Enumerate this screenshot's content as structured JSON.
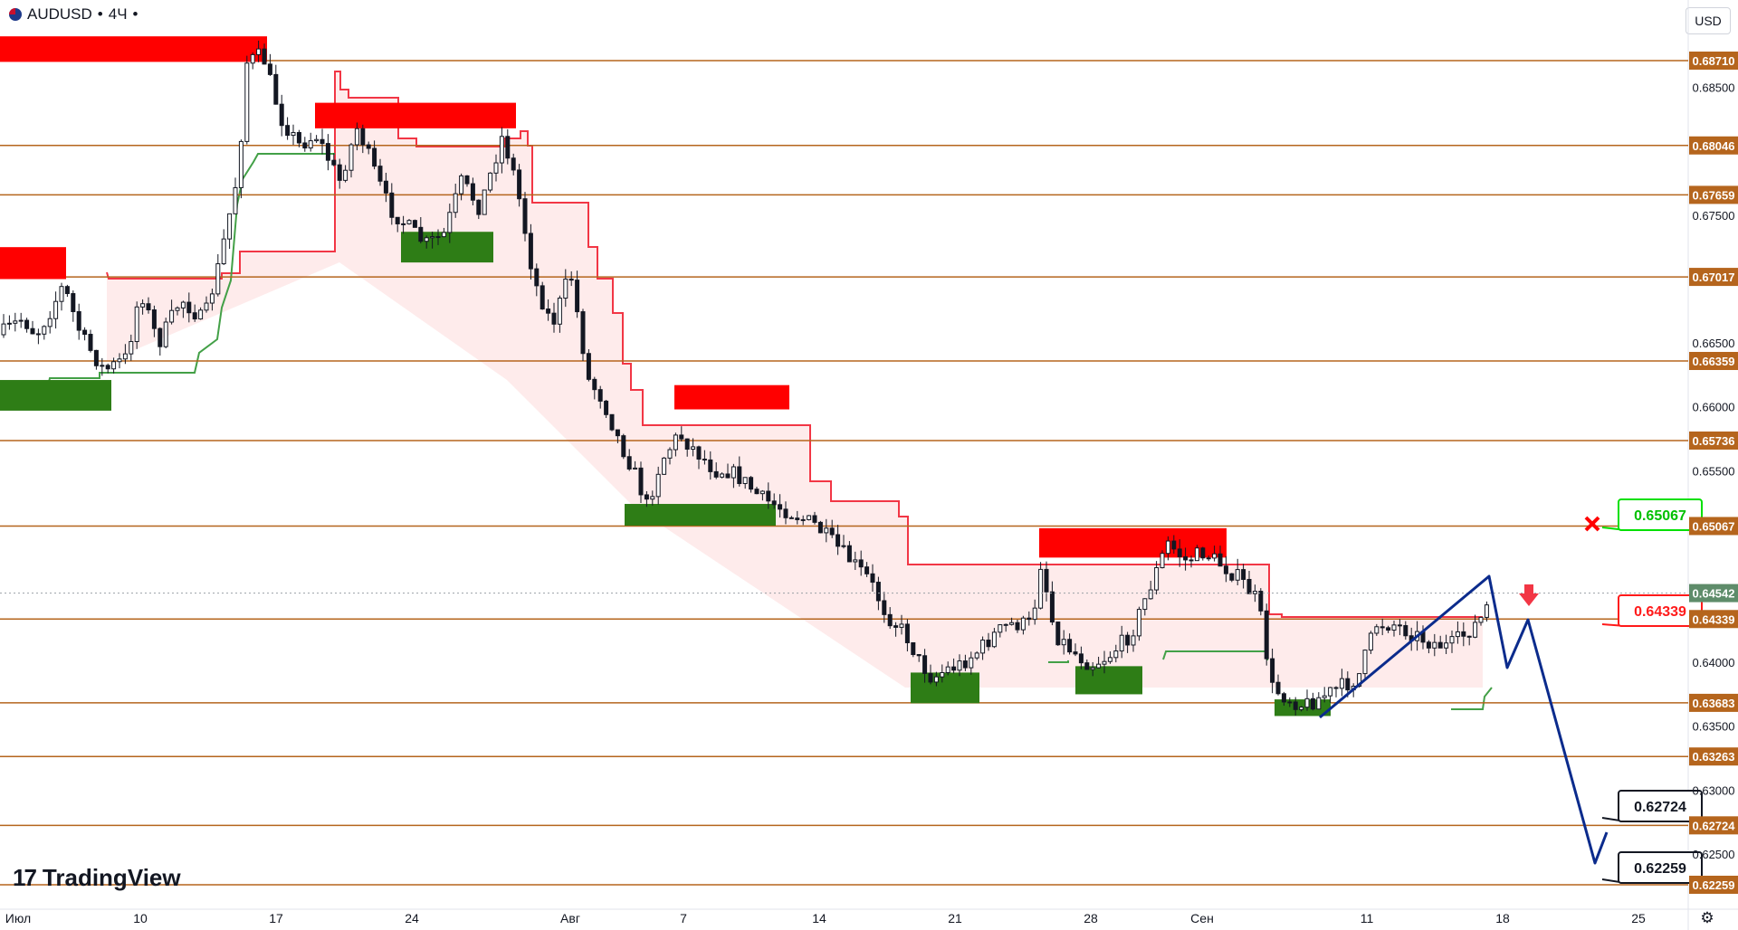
{
  "header": {
    "symbol": "AUDUSD",
    "interval": "4Ч",
    "currency": "USD"
  },
  "logo_text": "TradingView",
  "colors": {
    "level_line": "#b5651d",
    "level_label_bg": "#b5651d",
    "supply_zone": "#ff0000",
    "demand_zone": "#2e7d16",
    "trail_red": "#f23645",
    "trail_green": "#43a047",
    "fill_red": "#fde4e4",
    "fill_green": "#e6f4e3",
    "candle": "#131722",
    "projection": "#0b2b8c",
    "callout_green": "#00e000",
    "callout_red": "#ff1a1a",
    "price_bg": "#5e8c6a"
  },
  "chart_data": {
    "type": "candlestick",
    "y_axis": {
      "ticks": [
        "0.68500",
        "0.67500",
        "0.66500",
        "0.66000",
        "0.65500",
        "0.64000",
        "0.63500",
        "0.63000",
        "0.62500"
      ],
      "range": [
        0.6205,
        0.6895
      ]
    },
    "x_axis": {
      "labels": [
        "Июл",
        "10",
        "17",
        "24",
        "Авг",
        "7",
        "14",
        "21",
        "28",
        "Сен",
        "11",
        "18",
        "25"
      ]
    },
    "levels": [
      "0.68710",
      "0.68046",
      "0.67659",
      "0.67017",
      "0.66359",
      "0.65736",
      "0.65067",
      "0.64339",
      "0.63683",
      "0.63263",
      "0.62724",
      "0.62259"
    ],
    "current_price": "0.64542",
    "callouts": [
      {
        "label": "0.65067",
        "color": "green",
        "marker": "x"
      },
      {
        "label": "0.64339",
        "color": "red",
        "marker": "down-arrow"
      },
      {
        "label": "0.62724",
        "color": "black"
      },
      {
        "label": "0.62259",
        "color": "black"
      }
    ],
    "supply_zones": [
      {
        "from": "Июл",
        "to": "17",
        "low": 0.687,
        "high": 0.689
      },
      {
        "from": "Июл",
        "to": "10",
        "low": 0.67,
        "high": 0.6725
      },
      {
        "from": "24",
        "to": "Авг",
        "low": 0.6818,
        "high": 0.6838
      },
      {
        "from": "7",
        "to": "14",
        "low": 0.6598,
        "high": 0.6617
      },
      {
        "from": "28",
        "to": "Сен",
        "low": 0.6482,
        "high": 0.6505
      }
    ],
    "demand_zones": [
      {
        "from": "Июл",
        "to": "10",
        "low": 0.6597,
        "high": 0.6621
      },
      {
        "from": "24",
        "to": "Авг",
        "low": 0.6713,
        "high": 0.6737
      },
      {
        "from": "7",
        "to": "14",
        "low": 0.6507,
        "high": 0.6524
      },
      {
        "from": "21",
        "to": "28",
        "low": 0.6368,
        "high": 0.6392
      },
      {
        "from": "28",
        "to": "Сен",
        "low": 0.6375,
        "high": 0.6397
      },
      {
        "from": "11",
        "to": "18",
        "low": 0.6358,
        "high": 0.6371
      }
    ],
    "projection_path": [
      {
        "x": "11",
        "y": 0.6368
      },
      {
        "x": "18",
        "y": 0.6475
      },
      {
        "x": "18",
        "y": 0.6409
      },
      {
        "x": "18",
        "y": 0.6443
      },
      {
        "x": "25",
        "y": 0.6252
      },
      {
        "x": "25",
        "y": 0.627
      }
    ]
  }
}
